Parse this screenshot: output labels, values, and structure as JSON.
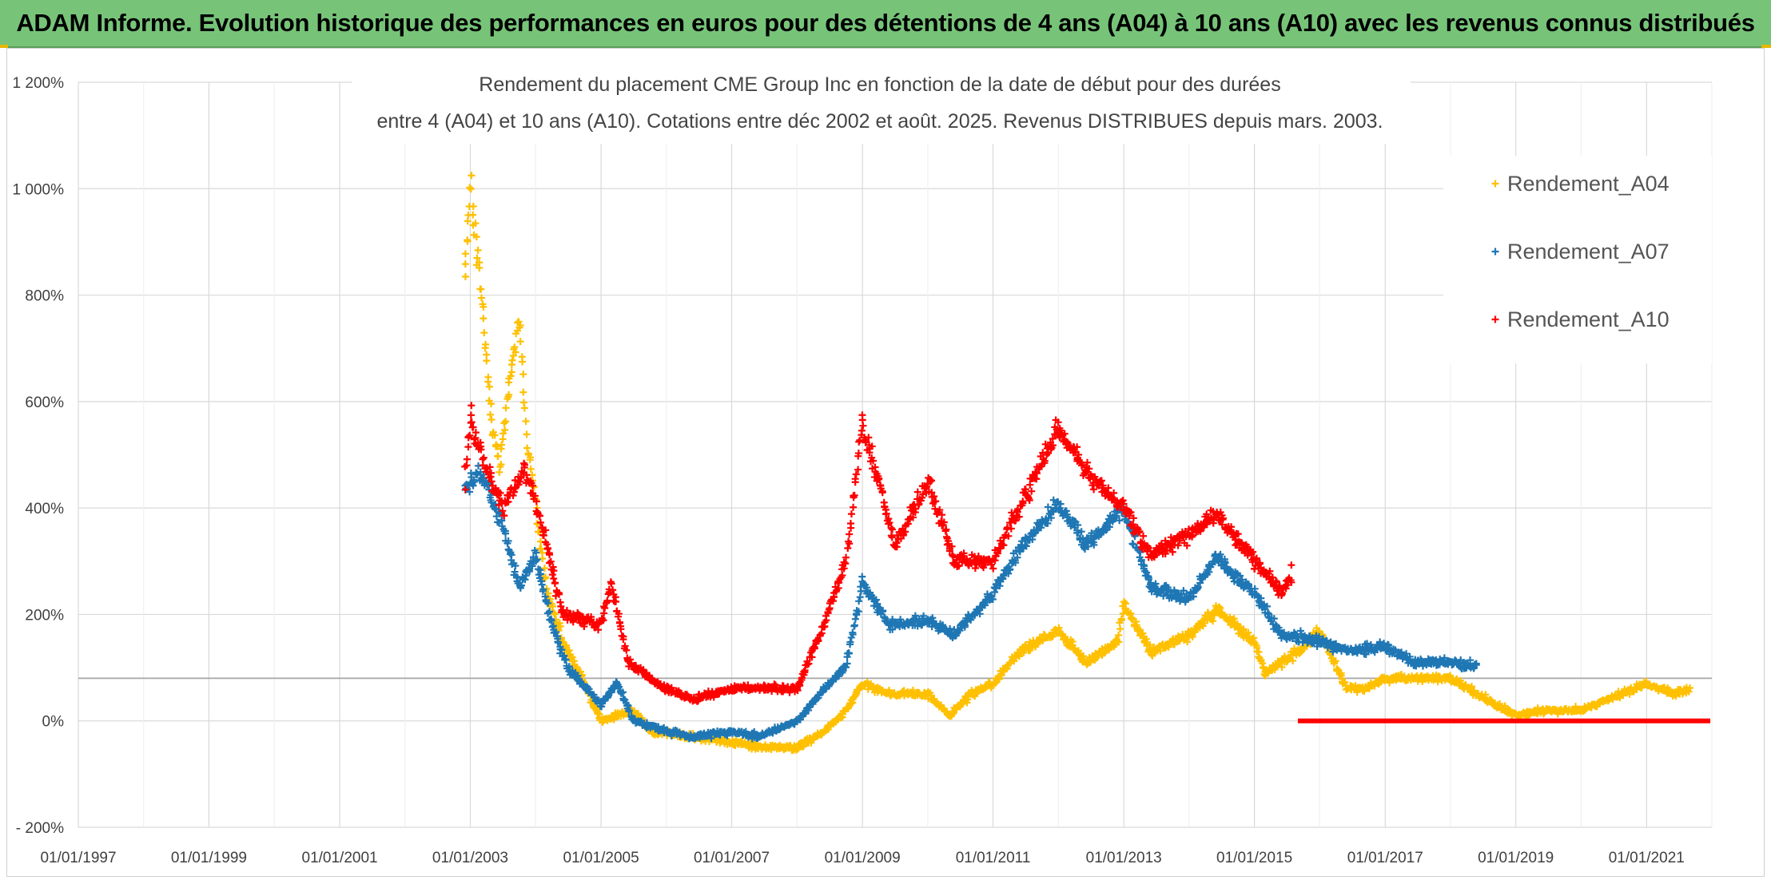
{
  "banner": {
    "title": "ADAM Informe. Evolution historique des performances en euros pour des détentions de 4 ans (A04) à 10 ans (A10) avec les revenus connus distribués"
  },
  "chart_data": {
    "type": "scatter",
    "title_lines": [
      "Rendement du placement CME Group Inc en fonction de la date de début pour des durées",
      "entre 4 (A04) et 10 ans (A10). Cotations entre déc 2002 et août. 2025. Revenus DISTRIBUES depuis mars. 2003."
    ],
    "xlabel": "",
    "ylabel": "",
    "x_range": [
      "1997-01-01",
      "2022-01-01"
    ],
    "x_ticks": [
      "01/01/1997",
      "01/01/1999",
      "01/01/2001",
      "01/01/2003",
      "01/01/2005",
      "01/01/2007",
      "01/01/2009",
      "01/01/2011",
      "01/01/2013",
      "01/01/2015",
      "01/01/2017",
      "01/01/2019",
      "01/01/2021"
    ],
    "ylim": [
      -200,
      1200
    ],
    "y_ticks": [
      {
        "value": 1200,
        "label": "1 200%"
      },
      {
        "value": 1000,
        "label": "1 000%"
      },
      {
        "value": 800,
        "label": "800%"
      },
      {
        "value": 600,
        "label": "600%"
      },
      {
        "value": 400,
        "label": "400%"
      },
      {
        "value": 200,
        "label": "200%"
      },
      {
        "value": 0,
        "label": "0%"
      },
      {
        "value": -200,
        "label": "- 200%"
      }
    ],
    "reference_line": 80,
    "grid": true,
    "legend_position": "right",
    "marker": "+",
    "series": [
      {
        "name": "Rendement_A04",
        "color": "#ffc000",
        "points": [
          [
            "2002-12-01",
            830
          ],
          [
            "2003-01-01",
            1000
          ],
          [
            "2003-02-01",
            900
          ],
          [
            "2003-03-01",
            820
          ],
          [
            "2003-04-01",
            680
          ],
          [
            "2003-05-01",
            560
          ],
          [
            "2003-06-15",
            480
          ],
          [
            "2003-08-01",
            620
          ],
          [
            "2003-10-01",
            760
          ],
          [
            "2003-11-15",
            520
          ],
          [
            "2004-01-01",
            400
          ],
          [
            "2004-03-01",
            250
          ],
          [
            "2004-06-01",
            150
          ],
          [
            "2004-09-01",
            90
          ],
          [
            "2005-01-01",
            0
          ],
          [
            "2005-04-01",
            10
          ],
          [
            "2005-07-01",
            20
          ],
          [
            "2005-10-01",
            -20
          ],
          [
            "2006-06-01",
            -30
          ],
          [
            "2007-01-01",
            -40
          ],
          [
            "2007-06-01",
            -50
          ],
          [
            "2008-01-01",
            -50
          ],
          [
            "2008-06-01",
            -20
          ],
          [
            "2008-10-01",
            20
          ],
          [
            "2009-01-01",
            70
          ],
          [
            "2009-06-01",
            50
          ],
          [
            "2010-01-01",
            50
          ],
          [
            "2010-05-01",
            10
          ],
          [
            "2010-09-01",
            50
          ],
          [
            "2011-01-01",
            70
          ],
          [
            "2011-06-01",
            130
          ],
          [
            "2012-01-01",
            170
          ],
          [
            "2012-06-01",
            110
          ],
          [
            "2012-12-01",
            150
          ],
          [
            "2013-01-01",
            220
          ],
          [
            "2013-06-01",
            130
          ],
          [
            "2014-01-01",
            160
          ],
          [
            "2014-06-01",
            210
          ],
          [
            "2015-01-01",
            150
          ],
          [
            "2015-03-01",
            90
          ],
          [
            "2015-09-01",
            130
          ],
          [
            "2016-01-01",
            170
          ],
          [
            "2016-06-01",
            60
          ],
          [
            "2016-09-01",
            60
          ],
          [
            "2017-01-01",
            80
          ],
          [
            "2017-06-01",
            80
          ],
          [
            "2018-01-01",
            80
          ],
          [
            "2018-06-01",
            50
          ],
          [
            "2019-01-01",
            10
          ],
          [
            "2019-06-01",
            20
          ],
          [
            "2020-01-01",
            20
          ],
          [
            "2020-06-01",
            40
          ],
          [
            "2021-01-01",
            70
          ],
          [
            "2021-06-01",
            50
          ],
          [
            "2021-09-01",
            60
          ]
        ]
      },
      {
        "name": "Rendement_A07",
        "color": "#1f77b4",
        "points": [
          [
            "2002-12-01",
            440
          ],
          [
            "2003-03-01",
            470
          ],
          [
            "2003-07-01",
            370
          ],
          [
            "2003-10-01",
            250
          ],
          [
            "2004-01-01",
            310
          ],
          [
            "2004-04-01",
            180
          ],
          [
            "2004-07-01",
            100
          ],
          [
            "2005-01-01",
            30
          ],
          [
            "2005-04-01",
            70
          ],
          [
            "2005-07-01",
            0
          ],
          [
            "2006-01-01",
            -20
          ],
          [
            "2006-06-01",
            -30
          ],
          [
            "2007-01-01",
            -20
          ],
          [
            "2007-06-01",
            -30
          ],
          [
            "2008-01-01",
            0
          ],
          [
            "2008-06-01",
            60
          ],
          [
            "2008-10-01",
            100
          ],
          [
            "2009-01-01",
            260
          ],
          [
            "2009-06-01",
            180
          ],
          [
            "2010-01-01",
            190
          ],
          [
            "2010-06-01",
            160
          ],
          [
            "2011-01-01",
            240
          ],
          [
            "2011-06-01",
            320
          ],
          [
            "2012-01-01",
            410
          ],
          [
            "2012-06-01",
            330
          ],
          [
            "2013-01-01",
            400
          ],
          [
            "2013-06-01",
            250
          ],
          [
            "2014-01-01",
            230
          ],
          [
            "2014-06-01",
            310
          ],
          [
            "2015-01-01",
            240
          ],
          [
            "2015-06-01",
            160
          ],
          [
            "2016-01-01",
            150
          ],
          [
            "2016-06-01",
            130
          ],
          [
            "2017-01-01",
            140
          ],
          [
            "2017-06-01",
            110
          ],
          [
            "2018-01-01",
            110
          ],
          [
            "2018-06-01",
            100
          ]
        ]
      },
      {
        "name": "Rendement_A10",
        "color": "#ff0000",
        "points": [
          [
            "2002-12-01",
            450
          ],
          [
            "2003-01-01",
            570
          ],
          [
            "2003-03-01",
            500
          ],
          [
            "2003-07-01",
            400
          ],
          [
            "2003-11-01",
            470
          ],
          [
            "2004-01-01",
            410
          ],
          [
            "2004-06-01",
            200
          ],
          [
            "2005-01-01",
            180
          ],
          [
            "2005-03-01",
            260
          ],
          [
            "2005-06-01",
            110
          ],
          [
            "2006-01-01",
            60
          ],
          [
            "2006-06-01",
            40
          ],
          [
            "2007-01-01",
            60
          ],
          [
            "2007-06-01",
            60
          ],
          [
            "2008-01-01",
            60
          ],
          [
            "2008-06-01",
            180
          ],
          [
            "2008-10-01",
            300
          ],
          [
            "2009-01-01",
            560
          ],
          [
            "2009-04-01",
            450
          ],
          [
            "2009-07-01",
            330
          ],
          [
            "2010-01-01",
            450
          ],
          [
            "2010-06-01",
            300
          ],
          [
            "2011-01-01",
            300
          ],
          [
            "2011-06-01",
            400
          ],
          [
            "2012-01-01",
            550
          ],
          [
            "2012-06-01",
            470
          ],
          [
            "2013-01-01",
            400
          ],
          [
            "2013-06-01",
            310
          ],
          [
            "2014-01-01",
            350
          ],
          [
            "2014-06-01",
            390
          ],
          [
            "2015-01-01",
            300
          ],
          [
            "2015-06-01",
            240
          ],
          [
            "2015-08-01",
            280
          ]
        ],
        "zero_segment": [
          "2015-09-01",
          "2022-01-01"
        ]
      }
    ]
  }
}
